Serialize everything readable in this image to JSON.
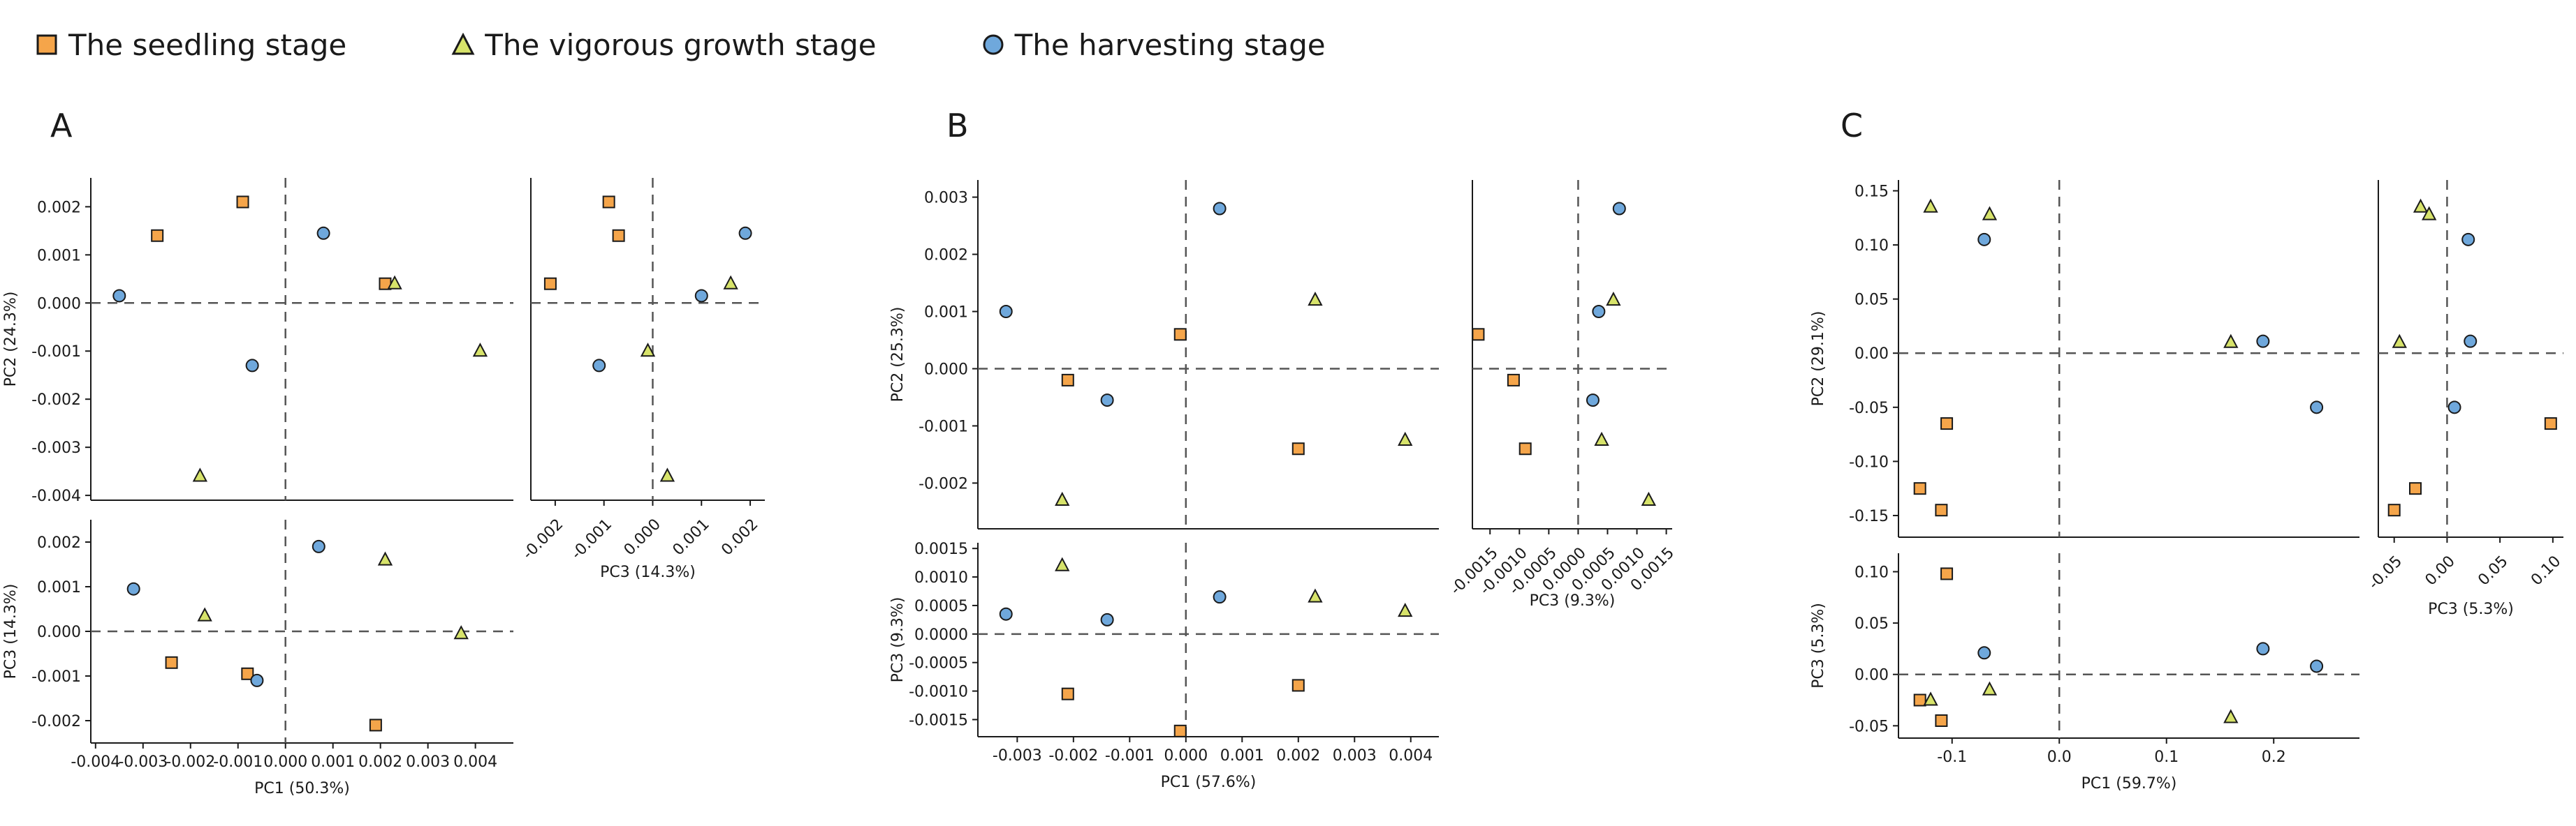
{
  "legend": {
    "entries": [
      {
        "label": "The seedling stage",
        "marker": "square",
        "color": "#f5a54a"
      },
      {
        "label": "The vigorous growth stage",
        "marker": "triangle",
        "color": "#d7e36a"
      },
      {
        "label": "The harvesting stage",
        "marker": "circle",
        "color": "#6fa8dc"
      }
    ]
  },
  "colors": {
    "seedling": "#f5a54a",
    "vigorous": "#d7e36a",
    "harvest": "#6fa8dc",
    "edge": "#1a1a1a"
  },
  "chart_data": [
    {
      "type": "scatter",
      "panel": "A",
      "subplot": "PC1 vs PC2",
      "xlabel": "",
      "ylabel": "PC2 (24.3%)",
      "xlim": [
        -0.0041,
        0.0048
      ],
      "ylim": [
        -0.0041,
        0.0026
      ],
      "xticks": [],
      "yticks": [
        "0.002",
        "0.001",
        "0.000",
        "-0.001",
        "-0.002",
        "-0.003",
        "-0.004"
      ],
      "yticks_values": [
        0.002,
        0.001,
        0.0,
        -0.001,
        -0.002,
        -0.003,
        -0.004
      ],
      "series": [
        {
          "stage": "seedling",
          "x": [
            -0.0027,
            -0.0009,
            0.0021
          ],
          "y": [
            0.0014,
            0.0021,
            0.0004
          ]
        },
        {
          "stage": "vigorous",
          "x": [
            -0.0018,
            0.0023,
            0.0041
          ],
          "y": [
            -0.0036,
            0.0004,
            -0.001
          ]
        },
        {
          "stage": "harvest",
          "x": [
            -0.0035,
            -0.0007,
            0.0008
          ],
          "y": [
            0.00015,
            -0.0013,
            0.00145
          ]
        }
      ]
    },
    {
      "type": "scatter",
      "panel": "A",
      "subplot": "PC3 vs PC2",
      "xlabel": "PC3 (14.3%)",
      "ylabel": "",
      "xlim": [
        -0.0025,
        0.0023
      ],
      "ylim": [
        -0.0041,
        0.0026
      ],
      "xticks": [
        "-0.002",
        "-0.001",
        "0.000",
        "0.001",
        "0.002"
      ],
      "xticks_values": [
        -0.002,
        -0.001,
        0.0,
        0.001,
        0.002
      ],
      "yticks": [],
      "series": [
        {
          "stage": "seedling",
          "x": [
            -0.0021,
            -0.0009,
            -0.0007
          ],
          "y": [
            0.0004,
            0.0021,
            0.0014
          ]
        },
        {
          "stage": "vigorous",
          "x": [
            -0.0001,
            0.0003,
            0.0016
          ],
          "y": [
            -0.001,
            -0.0036,
            0.0004
          ]
        },
        {
          "stage": "harvest",
          "x": [
            -0.0011,
            0.001,
            0.0019
          ],
          "y": [
            -0.0013,
            0.00015,
            0.00145
          ]
        }
      ]
    },
    {
      "type": "scatter",
      "panel": "A",
      "subplot": "PC1 vs PC3",
      "xlabel": "PC1 (50.3%)",
      "ylabel": "PC3 (14.3%)",
      "xlim": [
        -0.0041,
        0.0048
      ],
      "ylim": [
        -0.0025,
        0.0025
      ],
      "xticks": [
        "-0.004",
        "-0.003",
        "-0.002",
        "-0.001",
        "0.000",
        "0.001",
        "0.002",
        "0.003",
        "0.004"
      ],
      "xticks_values": [
        -0.004,
        -0.003,
        -0.002,
        -0.001,
        0.0,
        0.001,
        0.002,
        0.003,
        0.004
      ],
      "yticks": [
        "0.002",
        "0.001",
        "0.000",
        "-0.001",
        "-0.002"
      ],
      "yticks_values": [
        0.002,
        0.001,
        0.0,
        -0.001,
        -0.002
      ],
      "series": [
        {
          "stage": "seedling",
          "x": [
            -0.0024,
            -0.0008,
            0.0019
          ],
          "y": [
            -0.0007,
            -0.00095,
            -0.0021
          ]
        },
        {
          "stage": "vigorous",
          "x": [
            -0.0017,
            0.0021,
            0.0037
          ],
          "y": [
            0.00035,
            0.0016,
            -5e-05
          ]
        },
        {
          "stage": "harvest",
          "x": [
            -0.0032,
            -0.0006,
            0.0007
          ],
          "y": [
            0.00095,
            -0.0011,
            0.0019
          ]
        }
      ]
    },
    {
      "type": "scatter",
      "panel": "B",
      "subplot": "PC1 vs PC2",
      "xlabel": "",
      "ylabel": "PC2 (25.3%)",
      "xlim": [
        -0.0037,
        0.0045
      ],
      "ylim": [
        -0.0028,
        0.0033
      ],
      "xticks": [],
      "yticks": [
        "0.003",
        "0.002",
        "0.001",
        "0.000",
        "-0.001",
        "-0.002"
      ],
      "yticks_values": [
        0.003,
        0.002,
        0.001,
        0.0,
        -0.001,
        -0.002
      ],
      "series": [
        {
          "stage": "seedling",
          "x": [
            -0.0021,
            -0.0001,
            0.002
          ],
          "y": [
            -0.0002,
            0.0006,
            -0.0014
          ]
        },
        {
          "stage": "vigorous",
          "x": [
            -0.0022,
            0.0023,
            0.0039
          ],
          "y": [
            -0.0023,
            0.0012,
            -0.00125
          ]
        },
        {
          "stage": "harvest",
          "x": [
            -0.0032,
            -0.0014,
            0.0006
          ],
          "y": [
            0.001,
            -0.00055,
            0.0028
          ]
        }
      ]
    },
    {
      "type": "scatter",
      "panel": "B",
      "subplot": "PC3 vs PC2",
      "xlabel": "PC3 (9.3%)",
      "ylabel": "",
      "xlim": [
        -0.0018,
        0.0016
      ],
      "ylim": [
        -0.0028,
        0.0033
      ],
      "xticks": [
        "-0.0015",
        "-0.0010",
        "-0.0005",
        "0.0000",
        "0.0005",
        "0.0010",
        "0.0015"
      ],
      "xticks_values": [
        -0.0015,
        -0.001,
        -0.0005,
        0.0,
        0.0005,
        0.001,
        0.0015
      ],
      "yticks": [],
      "series": [
        {
          "stage": "seedling",
          "x": [
            -0.0017,
            -0.0011,
            -0.0009
          ],
          "y": [
            0.0006,
            -0.0002,
            -0.0014
          ]
        },
        {
          "stage": "vigorous",
          "x": [
            0.0004,
            0.0006,
            0.0012
          ],
          "y": [
            -0.00125,
            0.0012,
            -0.0023
          ]
        },
        {
          "stage": "harvest",
          "x": [
            0.00025,
            0.00035,
            0.0007
          ],
          "y": [
            -0.00055,
            0.001,
            0.0028
          ]
        }
      ]
    },
    {
      "type": "scatter",
      "panel": "B",
      "subplot": "PC1 vs PC3",
      "xlabel": "PC1 (57.6%)",
      "ylabel": "PC3 (9.3%)",
      "xlim": [
        -0.0037,
        0.0045
      ],
      "ylim": [
        -0.0018,
        0.0016
      ],
      "xticks": [
        "-0.003",
        "-0.002",
        "-0.001",
        "0.000",
        "0.001",
        "0.002",
        "0.003",
        "0.004"
      ],
      "xticks_values": [
        -0.003,
        -0.002,
        -0.001,
        0.0,
        0.001,
        0.002,
        0.003,
        0.004
      ],
      "yticks": [
        "0.0015",
        "0.0010",
        "0.0005",
        "0.0000",
        "-0.0005",
        "-0.0010",
        "-0.0015"
      ],
      "yticks_values": [
        0.0015,
        0.001,
        0.0005,
        0.0,
        -0.0005,
        -0.001,
        -0.0015
      ],
      "series": [
        {
          "stage": "seedling",
          "x": [
            -0.0021,
            -0.0001,
            0.002
          ],
          "y": [
            -0.00105,
            -0.0017,
            -0.0009
          ]
        },
        {
          "stage": "vigorous",
          "x": [
            -0.0022,
            0.0023,
            0.0039
          ],
          "y": [
            0.0012,
            0.00065,
            0.0004
          ]
        },
        {
          "stage": "harvest",
          "x": [
            -0.0032,
            -0.0014,
            0.0006
          ],
          "y": [
            0.00035,
            0.00025,
            0.00065
          ]
        }
      ]
    },
    {
      "type": "scatter",
      "panel": "C",
      "subplot": "PC1 vs PC2",
      "xlabel": "",
      "ylabel": "PC2 (29.1%)",
      "xlim": [
        -0.15,
        0.28
      ],
      "ylim": [
        -0.17,
        0.16
      ],
      "xticks": [],
      "yticks": [
        "0.15",
        "0.10",
        "0.05",
        "0.00",
        "-0.05",
        "-0.10",
        "-0.15"
      ],
      "yticks_values": [
        0.15,
        0.1,
        0.05,
        0.0,
        -0.05,
        -0.1,
        -0.15
      ],
      "series": [
        {
          "stage": "seedling",
          "x": [
            -0.13,
            -0.11,
            -0.105
          ],
          "y": [
            -0.125,
            -0.145,
            -0.065
          ]
        },
        {
          "stage": "vigorous",
          "x": [
            -0.12,
            -0.065,
            0.16
          ],
          "y": [
            0.135,
            0.128,
            0.01
          ]
        },
        {
          "stage": "harvest",
          "x": [
            -0.07,
            0.19,
            0.24
          ],
          "y": [
            0.105,
            0.011,
            -0.05
          ]
        }
      ]
    },
    {
      "type": "scatter",
      "panel": "C",
      "subplot": "PC3 vs PC2",
      "xlabel": "PC3 (5.3%)",
      "ylabel": "",
      "xlim": [
        -0.065,
        0.11
      ],
      "ylim": [
        -0.17,
        0.16
      ],
      "xticks": [
        "-0.05",
        "0.00",
        "0.05",
        "0.10"
      ],
      "xticks_values": [
        -0.05,
        0.0,
        0.05,
        0.1
      ],
      "yticks": [],
      "series": [
        {
          "stage": "seedling",
          "x": [
            -0.05,
            -0.03,
            0.098
          ],
          "y": [
            -0.145,
            -0.125,
            -0.065
          ]
        },
        {
          "stage": "vigorous",
          "x": [
            -0.045,
            -0.025,
            -0.017
          ],
          "y": [
            0.01,
            0.135,
            0.128
          ]
        },
        {
          "stage": "harvest",
          "x": [
            0.007,
            0.02,
            0.022
          ],
          "y": [
            -0.05,
            0.105,
            0.011
          ]
        }
      ]
    },
    {
      "type": "scatter",
      "panel": "C",
      "subplot": "PC1 vs PC3",
      "xlabel": "PC1 (59.7%)",
      "ylabel": "PC3 (5.3%)",
      "xlim": [
        -0.15,
        0.28
      ],
      "ylim": [
        -0.062,
        0.118
      ],
      "xticks": [
        "-0.1",
        "0.0",
        "0.1",
        "0.2"
      ],
      "xticks_values": [
        -0.1,
        0.0,
        0.1,
        0.2
      ],
      "yticks": [
        "0.10",
        "0.05",
        "0.00",
        "-0.05"
      ],
      "yticks_values": [
        0.1,
        0.05,
        0.0,
        -0.05
      ],
      "series": [
        {
          "stage": "seedling",
          "x": [
            -0.13,
            -0.11,
            -0.105
          ],
          "y": [
            -0.025,
            -0.045,
            0.098
          ]
        },
        {
          "stage": "vigorous",
          "x": [
            -0.12,
            -0.065,
            0.16
          ],
          "y": [
            -0.025,
            -0.015,
            -0.042
          ]
        },
        {
          "stage": "harvest",
          "x": [
            -0.07,
            0.19,
            0.24
          ],
          "y": [
            0.021,
            0.025,
            0.008
          ]
        }
      ]
    }
  ],
  "panel_labels": [
    "A",
    "B",
    "C"
  ]
}
